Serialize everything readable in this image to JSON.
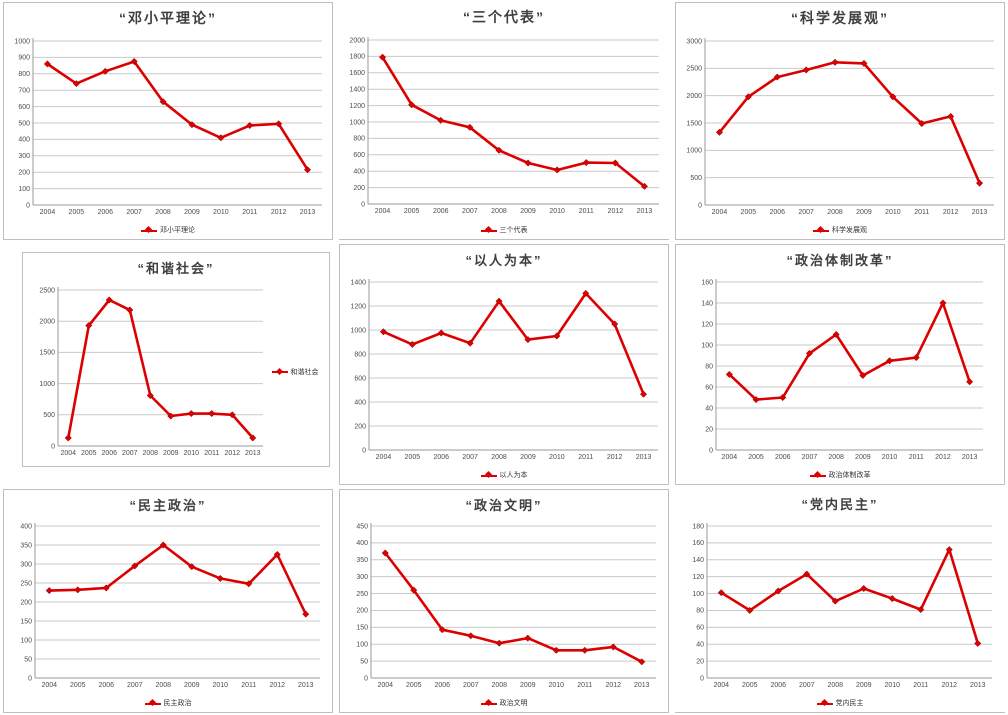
{
  "colors": {
    "line": "#dd0000",
    "grid": "#c9c9c9",
    "axis": "#9a9a9a",
    "title": "#3f3f3f",
    "tick": "#4d4d4d"
  },
  "chart_data": [
    {
      "type": "line",
      "title": "“邓小平理论”",
      "legend": "邓小平理论",
      "legend_position": "bottom",
      "categories": [
        "2004",
        "2005",
        "2006",
        "2007",
        "2008",
        "2009",
        "2010",
        "2011",
        "2012",
        "2013"
      ],
      "values": [
        860,
        740,
        815,
        875,
        630,
        490,
        410,
        485,
        495,
        215
      ],
      "ylim": [
        0,
        1000
      ],
      "ystep": 100,
      "grid": true
    },
    {
      "type": "line",
      "title": "“三个代表”",
      "legend": "三个代表",
      "legend_position": "bottom",
      "categories": [
        "2004",
        "2005",
        "2006",
        "2007",
        "2008",
        "2009",
        "2010",
        "2011",
        "2012",
        "2013"
      ],
      "values": [
        1790,
        1210,
        1020,
        935,
        655,
        500,
        415,
        505,
        500,
        215
      ],
      "ylim": [
        0,
        2000
      ],
      "ystep": 200,
      "grid": true
    },
    {
      "type": "line",
      "title": "“科学发展观”",
      "legend": "科学发展观",
      "legend_position": "bottom",
      "categories": [
        "2004",
        "2005",
        "2006",
        "2007",
        "2008",
        "2009",
        "2010",
        "2011",
        "2012",
        "2013"
      ],
      "values": [
        1330,
        1980,
        2340,
        2470,
        2610,
        2590,
        1980,
        1490,
        1620,
        400
      ],
      "ylim": [
        0,
        3000
      ],
      "ystep": 500,
      "grid": true
    },
    {
      "type": "line",
      "title": "“和谐社会”",
      "legend": "和谐社会",
      "legend_position": "right",
      "categories": [
        "2004",
        "2005",
        "2006",
        "2007",
        "2008",
        "2009",
        "2010",
        "2011",
        "2012",
        "2013"
      ],
      "values": [
        130,
        1930,
        2340,
        2180,
        810,
        480,
        520,
        520,
        500,
        130
      ],
      "ylim": [
        0,
        2500
      ],
      "ystep": 500,
      "grid": true
    },
    {
      "type": "line",
      "title": "“以人为本”",
      "legend": "以人为本",
      "legend_position": "bottom",
      "categories": [
        "2004",
        "2005",
        "2006",
        "2007",
        "2008",
        "2009",
        "2010",
        "2011",
        "2012",
        "2013"
      ],
      "values": [
        985,
        880,
        975,
        890,
        1240,
        920,
        950,
        1305,
        1050,
        465
      ],
      "ylim": [
        0,
        1400
      ],
      "ystep": 200,
      "grid": true
    },
    {
      "type": "line",
      "title": "“政治体制改革”",
      "legend": "政治体制改革",
      "legend_position": "bottom",
      "categories": [
        "2004",
        "2005",
        "2006",
        "2007",
        "2008",
        "2009",
        "2010",
        "2011",
        "2012",
        "2013"
      ],
      "values": [
        72,
        48,
        50,
        92,
        110,
        71,
        85,
        88,
        140,
        65
      ],
      "ylim": [
        0,
        160
      ],
      "ystep": 20,
      "grid": true
    },
    {
      "type": "line",
      "title": "“民主政治”",
      "legend": "民主政治",
      "legend_position": "bottom",
      "categories": [
        "2004",
        "2005",
        "2006",
        "2007",
        "2008",
        "2009",
        "2010",
        "2011",
        "2012",
        "2013"
      ],
      "values": [
        230,
        232,
        237,
        295,
        350,
        293,
        262,
        248,
        325,
        168
      ],
      "ylim": [
        0,
        400
      ],
      "ystep": 50,
      "grid": true
    },
    {
      "type": "line",
      "title": "“政治文明”",
      "legend": "政治文明",
      "legend_position": "bottom",
      "categories": [
        "2004",
        "2005",
        "2006",
        "2007",
        "2008",
        "2009",
        "2010",
        "2011",
        "2012",
        "2013"
      ],
      "values": [
        370,
        260,
        143,
        125,
        103,
        118,
        82,
        82,
        92,
        48
      ],
      "ylim": [
        0,
        450
      ],
      "ystep": 50,
      "grid": true
    },
    {
      "type": "line",
      "title": "“党内民主”",
      "legend": "党内民主",
      "legend_position": "bottom",
      "categories": [
        "2004",
        "2005",
        "2006",
        "2007",
        "2008",
        "2009",
        "2010",
        "2011",
        "2012",
        "2013"
      ],
      "values": [
        101,
        80,
        103,
        123,
        91,
        106,
        94,
        81,
        152,
        41
      ],
      "ylim": [
        0,
        180
      ],
      "ystep": 20,
      "grid": true
    }
  ]
}
